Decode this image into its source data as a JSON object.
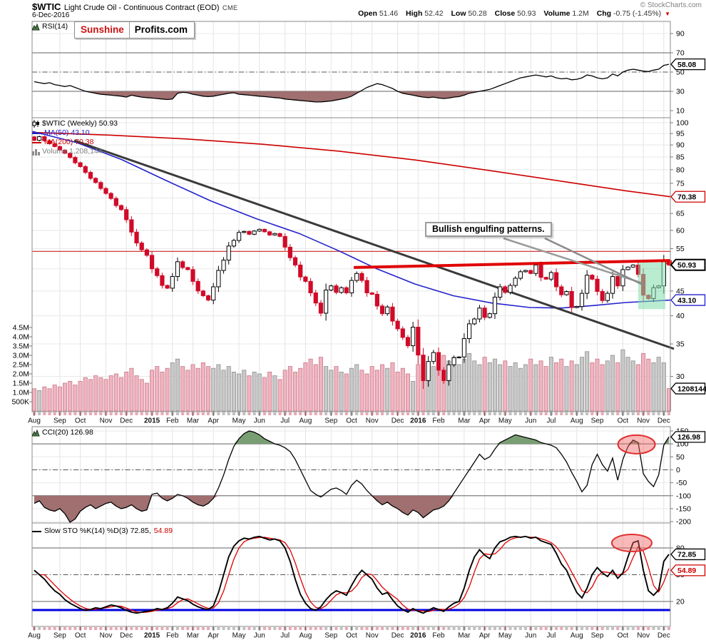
{
  "header": {
    "symbol": "$WTIC",
    "title": "Light Crude Oil - Continuous Contract (EOD)",
    "exchange": "CME",
    "date": "6-Dec-2016",
    "copyright": "© StockCharts.com",
    "quote": {
      "open_label": "Open",
      "open_value": "51.46",
      "high_label": "High",
      "high_value": "52.42",
      "low_label": "Low",
      "low_value": "50.28",
      "close_label": "Close",
      "close_value": "50.93",
      "volume_label": "Volume",
      "volume_value": "1.2M",
      "chg_label": "Chg",
      "chg_value": "-0.75 (-1.45%)"
    }
  },
  "logo": {
    "word1": "Sunshine",
    "word2": "Profits.com"
  },
  "legends": {
    "rsi": "RSI(14)",
    "symbol_line": "$WTIC (Weekly) 50.93",
    "ma50": "MA(50) 43.10",
    "ma200": "MA(200) 70.38",
    "volume": "Volume 1,208,144",
    "cci": "CCI(20) 126.98",
    "sto_main": "Slow STO %K(14) %D(3) 72.85,",
    "sto_d": "54.89"
  },
  "annotation": {
    "text": "Bullish engulfing patterns."
  },
  "colors": {
    "candle_down": "#d00a28",
    "candle_up_stroke": "#000000",
    "ma50": "#2222cc",
    "ma200": "#cc0000",
    "volume_down": "#f0b4c0",
    "volume_down_edge": "#c87888",
    "volume_up": "#c9c9c9",
    "volume_up_edge": "#909090",
    "fill_oversold": "#a06f6f",
    "fill_overbought": "#7a9e74",
    "highlight_box": "rgba(130,220,172,0.55)",
    "ellipse_fill": "rgba(242,100,100,0.45)",
    "ellipse_stroke": "#e03030",
    "trendline": "#3a3a3a",
    "resistance": "#e00000",
    "thin_red": "#cc2222",
    "sto_d_line": "#e00000",
    "blue_line": "#0000e0"
  },
  "x_axis": {
    "months": [
      [
        "Aug",
        5
      ],
      [
        "Sep",
        4
      ],
      [
        "Oct",
        5
      ],
      [
        "Nov",
        4
      ],
      [
        "Dec",
        5
      ],
      [
        "2015",
        4
      ],
      [
        "Feb",
        4
      ],
      [
        "Mar",
        4
      ],
      [
        "Apr",
        5
      ],
      [
        "May",
        4
      ],
      [
        "Jun",
        5
      ],
      [
        "Jul",
        4
      ],
      [
        "Aug",
        5
      ],
      [
        "Sep",
        4
      ],
      [
        "Oct",
        4
      ],
      [
        "Nov",
        5
      ],
      [
        "Dec",
        4
      ],
      [
        "2016",
        4
      ],
      [
        "Feb",
        5
      ],
      [
        "Mar",
        4
      ],
      [
        "Apr",
        4
      ],
      [
        "May",
        5
      ],
      [
        "Jun",
        4
      ],
      [
        "Jul",
        5
      ],
      [
        "Aug",
        4
      ],
      [
        "Sep",
        5
      ],
      [
        "Oct",
        4
      ],
      [
        "Nov",
        4
      ],
      [
        "Dec",
        2
      ]
    ]
  },
  "chart_data": [
    {
      "type": "line",
      "panel": "rsi",
      "title": "RSI(14)",
      "last_value": 58.08,
      "yticks": [
        90,
        70,
        50,
        30,
        10
      ],
      "solid_lines": [
        70,
        30
      ],
      "dashdot_line": 50,
      "fill_below": 30,
      "values": [
        40,
        39,
        38,
        39,
        37,
        36,
        35,
        36,
        34,
        32,
        30,
        29,
        28,
        27,
        26.5,
        26,
        25.5,
        25,
        24,
        26,
        25,
        24,
        23.5,
        23,
        22.5,
        22,
        21.5,
        22,
        28,
        29,
        28.5,
        27,
        26,
        25,
        24.5,
        25,
        26,
        27,
        28,
        28.5,
        27,
        26.5,
        26,
        25.5,
        25,
        24.5,
        24,
        23.5,
        23,
        22,
        21.5,
        21,
        20.5,
        20,
        19.5,
        19,
        19,
        19.5,
        20,
        21,
        22,
        23,
        25,
        28,
        31,
        34,
        36,
        38,
        37,
        35,
        33,
        30,
        28,
        27,
        26,
        25,
        24,
        23.5,
        24,
        23,
        22.5,
        23,
        24,
        24.5,
        26,
        28,
        29,
        30,
        31,
        32,
        34,
        36,
        38,
        40,
        42,
        44,
        45,
        46,
        47,
        46,
        45,
        46,
        44,
        43,
        43.5,
        42,
        42.5,
        44,
        47,
        46,
        44,
        43,
        44,
        48,
        46,
        50,
        52,
        53,
        52,
        51,
        50.5,
        52,
        53,
        57,
        58.08
      ]
    },
    {
      "type": "candlestick",
      "panel": "main",
      "title": "$WTIC (Weekly)",
      "scale": "log",
      "last_close": 50.93,
      "volume_last": "1208144",
      "yticks": [
        100,
        95,
        90,
        85,
        80,
        75,
        65,
        60,
        55,
        45,
        40,
        35,
        30
      ],
      "grid_extra": [
        70,
        50
      ],
      "volume_ticks": [
        [
          "4.5M",
          4.5
        ],
        [
          "4.0M",
          4.0
        ],
        [
          "3.5M",
          3.5
        ],
        [
          "3.0M",
          3.0
        ],
        [
          "2.5M",
          2.5
        ],
        [
          "2.0M",
          2.0
        ],
        [
          "1.5M",
          1.5
        ],
        [
          "1.0M",
          1.0
        ],
        [
          "500K",
          0.5
        ]
      ],
      "closes": [
        92,
        93.6,
        91.8,
        90.5,
        89.3,
        87.8,
        86.5,
        84.8,
        82.7,
        81.2,
        79,
        76.8,
        75.3,
        73.2,
        71.5,
        69.8,
        67.5,
        66.2,
        63.1,
        59.5,
        56.5,
        54.7,
        53.3,
        50,
        48.4,
        46.2,
        45.6,
        48.2,
        51.7,
        50.3,
        49.8,
        47.1,
        45,
        44,
        43.1,
        45.9,
        49.6,
        52.1,
        55.7,
        57.2,
        59.4,
        59.7,
        58.9,
        59.8,
        60.3,
        59.6,
        58.7,
        59.1,
        58.3,
        55.4,
        52.7,
        50.9,
        48.1,
        47.1,
        44.6,
        42.5,
        40.5,
        45.2,
        46.1,
        44.7,
        45.7,
        44.6,
        47.3,
        48.9,
        47.3,
        44.6,
        44.3,
        41.9,
        40.4,
        41.7,
        39,
        37.6,
        36.1,
        34.7,
        37.9,
        33.2,
        29.4,
        32.2,
        33.6,
        30.9,
        29.4,
        31.7,
        32.8,
        32.9,
        35.9,
        38.5,
        39.4,
        41.5,
        39.7,
        40.4,
        43.7,
        45.9,
        44.7,
        46.2,
        47.8,
        49.3,
        49.6,
        48.9,
        50.9,
        48,
        47.6,
        49.1,
        45.9,
        44.2,
        44.9,
        41.6,
        41.8,
        44.5,
        48.5,
        47.6,
        44.9,
        43,
        44.5,
        48.2,
        46.1,
        49.8,
        50.4,
        50.9,
        48.7,
        44.1,
        43.4,
        45.7,
        46.1,
        51.7,
        50.93
      ],
      "volumes_millions": [
        1.2,
        1.1,
        1.3,
        1.2,
        1.4,
        1.3,
        1.5,
        1.6,
        1.4,
        1.6,
        1.8,
        1.7,
        1.9,
        1.8,
        1.7,
        1.9,
        2.0,
        1.8,
        2.1,
        2.3,
        1.9,
        1.7,
        1.5,
        2.2,
        2.4,
        2.1,
        2.3,
        2.6,
        2.8,
        2.4,
        2.2,
        2.5,
        2.3,
        2.6,
        2.4,
        2.3,
        2.5,
        2.2,
        2.4,
        2.1,
        2.0,
        2.2,
        1.9,
        2.1,
        2.0,
        1.8,
        2.1,
        1.9,
        1.7,
        2.2,
        2.4,
        2.1,
        2.3,
        2.6,
        2.8,
        2.5,
        2.9,
        2.4,
        2.2,
        2.4,
        2.1,
        2.0,
        2.3,
        2.5,
        2.2,
        2.0,
        2.4,
        2.2,
        2.5,
        2.3,
        2.6,
        2.1,
        2.3,
        2.0,
        1.6,
        2.5,
        2.9,
        2.6,
        2.4,
        2.8,
        3.0,
        2.7,
        2.9,
        2.5,
        2.8,
        3.1,
        2.7,
        2.5,
        2.9,
        2.6,
        2.8,
        2.5,
        2.7,
        2.4,
        2.6,
        2.3,
        2.5,
        2.8,
        2.5,
        2.7,
        2.4,
        2.9,
        2.6,
        2.8,
        2.4,
        2.7,
        2.5,
        2.9,
        3.2,
        2.6,
        2.8,
        2.5,
        2.7,
        3.0,
        2.6,
        3.3,
        2.9,
        2.7,
        2.5,
        3.1,
        2.8,
        2.6,
        2.9,
        2.6,
        1.21
      ],
      "ma50": {
        "label": "MA(50)",
        "last": 43.1,
        "points": [
          [
            0,
            96
          ],
          [
            0.07,
            91
          ],
          [
            0.14,
            84
          ],
          [
            0.21,
            76
          ],
          [
            0.28,
            69
          ],
          [
            0.35,
            63.5
          ],
          [
            0.42,
            59
          ],
          [
            0.48,
            54.5
          ],
          [
            0.54,
            50
          ],
          [
            0.6,
            46.5
          ],
          [
            0.66,
            44
          ],
          [
            0.72,
            42.5
          ],
          [
            0.78,
            41.6
          ],
          [
            0.83,
            41.5
          ],
          [
            0.88,
            42
          ],
          [
            0.93,
            42.6
          ],
          [
            1,
            43.1
          ]
        ]
      },
      "ma200": {
        "label": "MA(200)",
        "last": 70.38,
        "points": [
          [
            0,
            95.5
          ],
          [
            0.12,
            94.3
          ],
          [
            0.24,
            92.6
          ],
          [
            0.36,
            90.3
          ],
          [
            0.48,
            87.4
          ],
          [
            0.6,
            83.8
          ],
          [
            0.72,
            79.6
          ],
          [
            0.84,
            75.4
          ],
          [
            0.93,
            72.4
          ],
          [
            1,
            70.38
          ]
        ]
      },
      "overlays": {
        "trendline": [
          [
            0.066,
            91.9
          ],
          [
            1.0,
            34.2
          ]
        ],
        "horizontal_line": 54.3,
        "resistance_line": [
          [
            0.504,
            50.3
          ],
          [
            1.0,
            52.0
          ]
        ],
        "highlight_box": {
          "x_from": 0.9497,
          "x_to": 0.9922,
          "price_top": 51.5,
          "price_bottom": 41.3
        },
        "callout_target": [
          0.955,
          46.5
        ]
      }
    },
    {
      "type": "line",
      "panel": "cci",
      "title": "CCI(20)",
      "last_value": 126.98,
      "yticks": [
        150,
        100,
        50,
        0,
        -50,
        -100,
        -150,
        -200
      ],
      "solid_lines": [
        100,
        -100
      ],
      "dashdot_line": 0,
      "fill_above": 100,
      "fill_below": -100,
      "ellipse": {
        "x_frac": 0.947,
        "value": 98
      },
      "values": [
        -130,
        -120,
        -145,
        -155,
        -160,
        -150,
        -170,
        -230,
        -190,
        -160,
        -145,
        -135,
        -150,
        -140,
        -130,
        -125,
        -140,
        -150,
        -145,
        -135,
        -150,
        -160,
        -155,
        -95,
        -90,
        -110,
        -120,
        -110,
        -95,
        -100,
        -110,
        -125,
        -135,
        -140,
        -130,
        -110,
        -70,
        -20,
        40,
        90,
        120,
        140,
        150,
        145,
        135,
        120,
        110,
        100,
        95,
        85,
        70,
        40,
        0,
        -40,
        -80,
        -95,
        -105,
        -90,
        -75,
        -70,
        -80,
        -95,
        -60,
        -40,
        -55,
        -80,
        -100,
        -120,
        -135,
        -125,
        -140,
        -150,
        -165,
        -175,
        -155,
        -165,
        -185,
        -170,
        -155,
        -150,
        -140,
        -120,
        -90,
        -60,
        -30,
        0,
        30,
        60,
        40,
        50,
        80,
        105,
        115,
        125,
        135,
        130,
        125,
        120,
        115,
        105,
        100,
        95,
        85,
        60,
        30,
        -10,
        -45,
        -85,
        -60,
        20,
        60,
        20,
        -5,
        45,
        -40,
        40,
        90,
        115,
        105,
        -15,
        -45,
        -65,
        -20,
        95,
        126.98
      ]
    },
    {
      "type": "double_line",
      "panel": "sto",
      "title": "Slow STO %K(14) %D(3)",
      "k_last": 72.85,
      "d_last": 54.89,
      "yticks": [
        80,
        50,
        20
      ],
      "solid_lines": [
        80,
        20
      ],
      "dashdot_line": 50,
      "blue_line": 10.4,
      "ellipse": {
        "x_frac": 0.9396,
        "value": 85.6
      },
      "k_values": [
        55,
        50,
        45,
        38,
        32,
        28,
        22,
        18,
        15,
        12,
        10,
        11,
        13,
        12,
        14,
        16,
        15,
        13,
        10,
        8,
        7,
        8,
        9,
        10,
        12,
        11,
        13,
        18,
        25,
        23,
        21,
        17,
        14,
        12,
        11,
        15,
        30,
        50,
        70,
        82,
        88,
        91,
        90,
        92,
        93,
        91,
        89,
        90,
        88,
        80,
        65,
        45,
        28,
        18,
        12,
        10,
        14,
        22,
        28,
        32,
        30,
        27,
        38,
        48,
        55,
        50,
        45,
        35,
        28,
        30,
        22,
        15,
        11,
        8,
        12,
        9,
        7,
        10,
        13,
        11,
        9,
        14,
        18,
        20,
        35,
        55,
        70,
        78,
        72,
        68,
        80,
        87,
        89,
        92,
        93,
        92,
        93,
        91,
        92,
        88,
        86,
        84,
        74,
        62,
        55,
        42,
        30,
        24,
        35,
        50,
        58,
        52,
        48,
        55,
        46,
        52,
        70,
        86,
        88,
        55,
        32,
        27,
        33,
        65,
        72.85
      ]
    }
  ]
}
